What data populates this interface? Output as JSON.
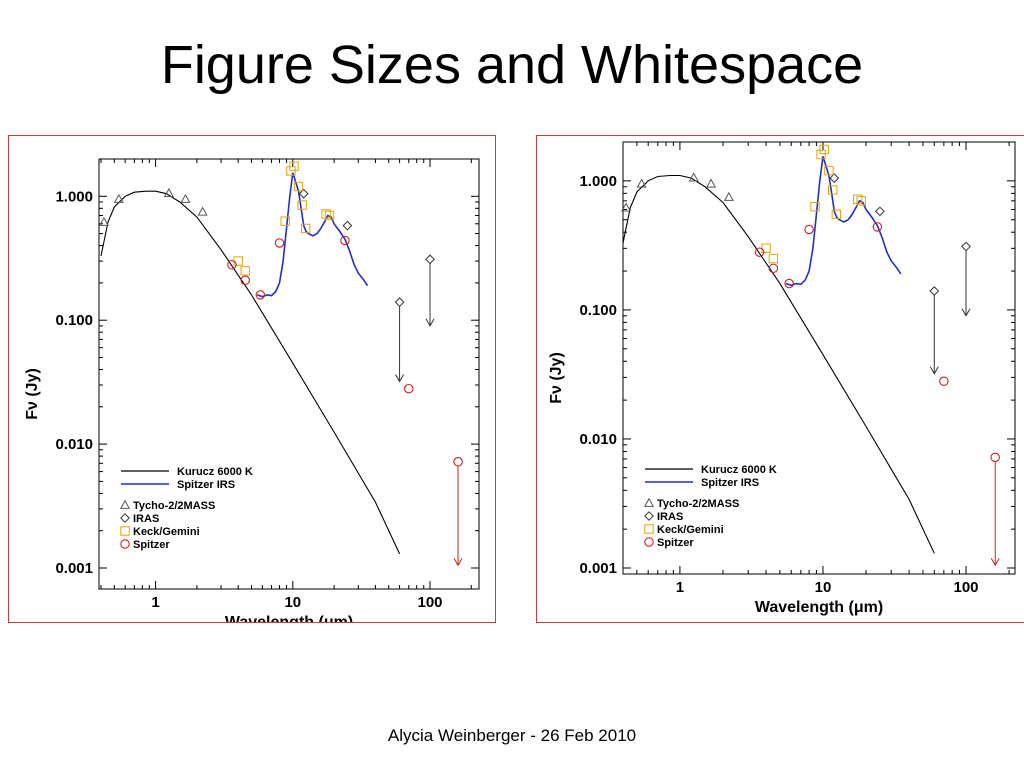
{
  "slide": {
    "title": "Figure Sizes and Whitespace",
    "footer": "Alycia Weinberger - 26 Feb 2010"
  },
  "colors": {
    "panel_border": "#d23a3a",
    "model": "#000000",
    "irs": "#1f2fd0",
    "tycho": "#555555",
    "iras": "#333333",
    "keck": "#e6a300",
    "spitzer": "#d01f1f",
    "upper_limit_black": "#333333",
    "upper_limit_red": "#d01f1f"
  },
  "chart_data": [
    {
      "type": "scatter",
      "panel": "left",
      "xlabel": "Wavelength (μm)",
      "ylabel": "Fν (Jy)",
      "xscale": "log",
      "yscale": "log",
      "xlim": [
        0.4,
        220
      ],
      "ylim": [
        0.001,
        2.0
      ],
      "xticks": [
        {
          "value": 1,
          "label": "1"
        },
        {
          "value": 10,
          "label": "10"
        },
        {
          "value": 100,
          "label": "100"
        }
      ],
      "yticks": [
        {
          "value": 0.001,
          "label": "0.001"
        },
        {
          "value": 0.01,
          "label": "0.010"
        },
        {
          "value": 0.1,
          "label": "0.100"
        },
        {
          "value": 1,
          "label": "1.000"
        }
      ],
      "legend_position": "bottom-left",
      "legend": {
        "lines": [
          {
            "label": "Kurucz 6000 K",
            "series": "kurucz"
          },
          {
            "label": "Spitzer IRS",
            "series": "irs"
          }
        ],
        "markers": [
          {
            "label": "Tycho-2/2MASS",
            "marker": "triangle",
            "series": "tycho"
          },
          {
            "label": "IRAS",
            "marker": "diamond",
            "series": "iras"
          },
          {
            "label": "Keck/Gemini",
            "marker": "square",
            "series": "keck"
          },
          {
            "label": "Spitzer",
            "marker": "circle",
            "series": "spitzer"
          }
        ]
      },
      "series": {
        "kurucz": {
          "kind": "line",
          "x": [
            0.4,
            0.45,
            0.5,
            0.6,
            0.7,
            0.85,
            1.0,
            1.2,
            1.5,
            2.0,
            3.0,
            5.0,
            10,
            20,
            40,
            60
          ],
          "y": [
            0.33,
            0.62,
            0.82,
            1.0,
            1.08,
            1.1,
            1.1,
            1.05,
            0.9,
            0.68,
            0.37,
            0.16,
            0.045,
            0.0125,
            0.0034,
            0.0013
          ]
        },
        "irs": {
          "kind": "line",
          "x": [
            5.5,
            6.0,
            6.5,
            7.0,
            7.5,
            8.0,
            8.5,
            9.0,
            9.5,
            10.0,
            10.5,
            11.0,
            11.5,
            12.0,
            12.5,
            13,
            14,
            15,
            16,
            17,
            18,
            19,
            20,
            22,
            24,
            26,
            28,
            30,
            33,
            35
          ],
          "y": [
            0.16,
            0.155,
            0.16,
            0.158,
            0.17,
            0.2,
            0.3,
            0.55,
            1.0,
            1.55,
            1.3,
            1.1,
            0.8,
            0.58,
            0.52,
            0.5,
            0.48,
            0.5,
            0.55,
            0.62,
            0.7,
            0.68,
            0.6,
            0.52,
            0.45,
            0.36,
            0.28,
            0.24,
            0.21,
            0.19
          ]
        },
        "tycho": {
          "kind": "marker",
          "marker": "triangle",
          "x": [
            0.42,
            0.54,
            1.25,
            1.65,
            2.2
          ],
          "y": [
            0.62,
            0.95,
            1.06,
            0.95,
            0.75
          ]
        },
        "iras": {
          "kind": "marker",
          "marker": "diamond",
          "x": [
            12,
            25
          ],
          "y": [
            1.05,
            0.58
          ]
        },
        "keck": {
          "kind": "marker",
          "marker": "square",
          "x": [
            4.0,
            4.5,
            8.8,
            9.7,
            10.2,
            11.0,
            11.7,
            12.4,
            17.5,
            18.5
          ],
          "y": [
            0.3,
            0.25,
            0.63,
            1.6,
            1.75,
            1.2,
            0.85,
            0.55,
            0.72,
            0.7
          ]
        },
        "spitzer": {
          "kind": "marker",
          "marker": "circle",
          "x": [
            3.6,
            4.5,
            5.8,
            8.0,
            24,
            70
          ],
          "y": [
            0.28,
            0.21,
            0.16,
            0.42,
            0.44,
            0.028
          ]
        },
        "upper_limits": [
          {
            "x": 60,
            "y": 0.14,
            "y_to": 0.032,
            "color": "upper_limit_black"
          },
          {
            "x": 100,
            "y": 0.31,
            "y_to": 0.09,
            "color": "upper_limit_black"
          },
          {
            "x": 160,
            "y": 0.0072,
            "y_to": 0.00105,
            "color": "upper_limit_red"
          }
        ]
      }
    },
    {
      "type": "scatter",
      "panel": "right",
      "xlabel": "Wavelength (μm)",
      "ylabel": "Fν (Jy)",
      "xscale": "log",
      "yscale": "log",
      "xlim": [
        0.4,
        220
      ],
      "ylim": [
        0.001,
        2.0
      ],
      "xticks": [
        {
          "value": 1,
          "label": "1"
        },
        {
          "value": 10,
          "label": "10"
        },
        {
          "value": 100,
          "label": "100"
        }
      ],
      "yticks": [
        {
          "value": 0.001,
          "label": "0.001"
        },
        {
          "value": 0.01,
          "label": "0.010"
        },
        {
          "value": 0.1,
          "label": "0.100"
        },
        {
          "value": 1,
          "label": "1.000"
        }
      ],
      "legend_position": "bottom-left",
      "legend": {
        "lines": [
          {
            "label": "Kurucz 6000 K",
            "series": "kurucz"
          },
          {
            "label": "Spitzer IRS",
            "series": "irs"
          }
        ],
        "markers": [
          {
            "label": "Tycho-2/2MASS",
            "marker": "triangle",
            "series": "tycho"
          },
          {
            "label": "IRAS",
            "marker": "diamond",
            "series": "iras"
          },
          {
            "label": "Keck/Gemini",
            "marker": "square",
            "series": "keck"
          },
          {
            "label": "Spitzer",
            "marker": "circle",
            "series": "spitzer"
          }
        ]
      },
      "series": {
        "kurucz": {
          "kind": "line",
          "x": [
            0.4,
            0.45,
            0.5,
            0.6,
            0.7,
            0.85,
            1.0,
            1.2,
            1.5,
            2.0,
            3.0,
            5.0,
            10,
            20,
            40,
            60
          ],
          "y": [
            0.33,
            0.62,
            0.82,
            1.0,
            1.08,
            1.1,
            1.1,
            1.05,
            0.9,
            0.68,
            0.37,
            0.16,
            0.045,
            0.0125,
            0.0034,
            0.0013
          ]
        },
        "irs": {
          "kind": "line",
          "x": [
            5.5,
            6.0,
            6.5,
            7.0,
            7.5,
            8.0,
            8.5,
            9.0,
            9.5,
            10.0,
            10.5,
            11.0,
            11.5,
            12.0,
            12.5,
            13,
            14,
            15,
            16,
            17,
            18,
            19,
            20,
            22,
            24,
            26,
            28,
            30,
            33,
            35
          ],
          "y": [
            0.16,
            0.155,
            0.16,
            0.158,
            0.17,
            0.2,
            0.3,
            0.55,
            1.0,
            1.55,
            1.3,
            1.1,
            0.8,
            0.58,
            0.52,
            0.5,
            0.48,
            0.5,
            0.55,
            0.62,
            0.7,
            0.68,
            0.6,
            0.52,
            0.45,
            0.36,
            0.28,
            0.24,
            0.21,
            0.19
          ]
        },
        "tycho": {
          "kind": "marker",
          "marker": "triangle",
          "x": [
            0.42,
            0.54,
            1.25,
            1.65,
            2.2
          ],
          "y": [
            0.62,
            0.95,
            1.06,
            0.95,
            0.75
          ]
        },
        "iras": {
          "kind": "marker",
          "marker": "diamond",
          "x": [
            12,
            25
          ],
          "y": [
            1.05,
            0.58
          ]
        },
        "keck": {
          "kind": "marker",
          "marker": "square",
          "x": [
            4.0,
            4.5,
            8.8,
            9.7,
            10.2,
            11.0,
            11.7,
            12.4,
            17.5,
            18.5
          ],
          "y": [
            0.3,
            0.25,
            0.63,
            1.6,
            1.75,
            1.2,
            0.85,
            0.55,
            0.72,
            0.7
          ]
        },
        "spitzer": {
          "kind": "marker",
          "marker": "circle",
          "x": [
            3.6,
            4.5,
            5.8,
            8.0,
            24,
            70
          ],
          "y": [
            0.28,
            0.21,
            0.16,
            0.42,
            0.44,
            0.028
          ]
        },
        "upper_limits": [
          {
            "x": 60,
            "y": 0.14,
            "y_to": 0.032,
            "color": "upper_limit_black"
          },
          {
            "x": 100,
            "y": 0.31,
            "y_to": 0.09,
            "color": "upper_limit_black"
          },
          {
            "x": 160,
            "y": 0.0072,
            "y_to": 0.00105,
            "color": "upper_limit_red"
          }
        ]
      }
    }
  ]
}
